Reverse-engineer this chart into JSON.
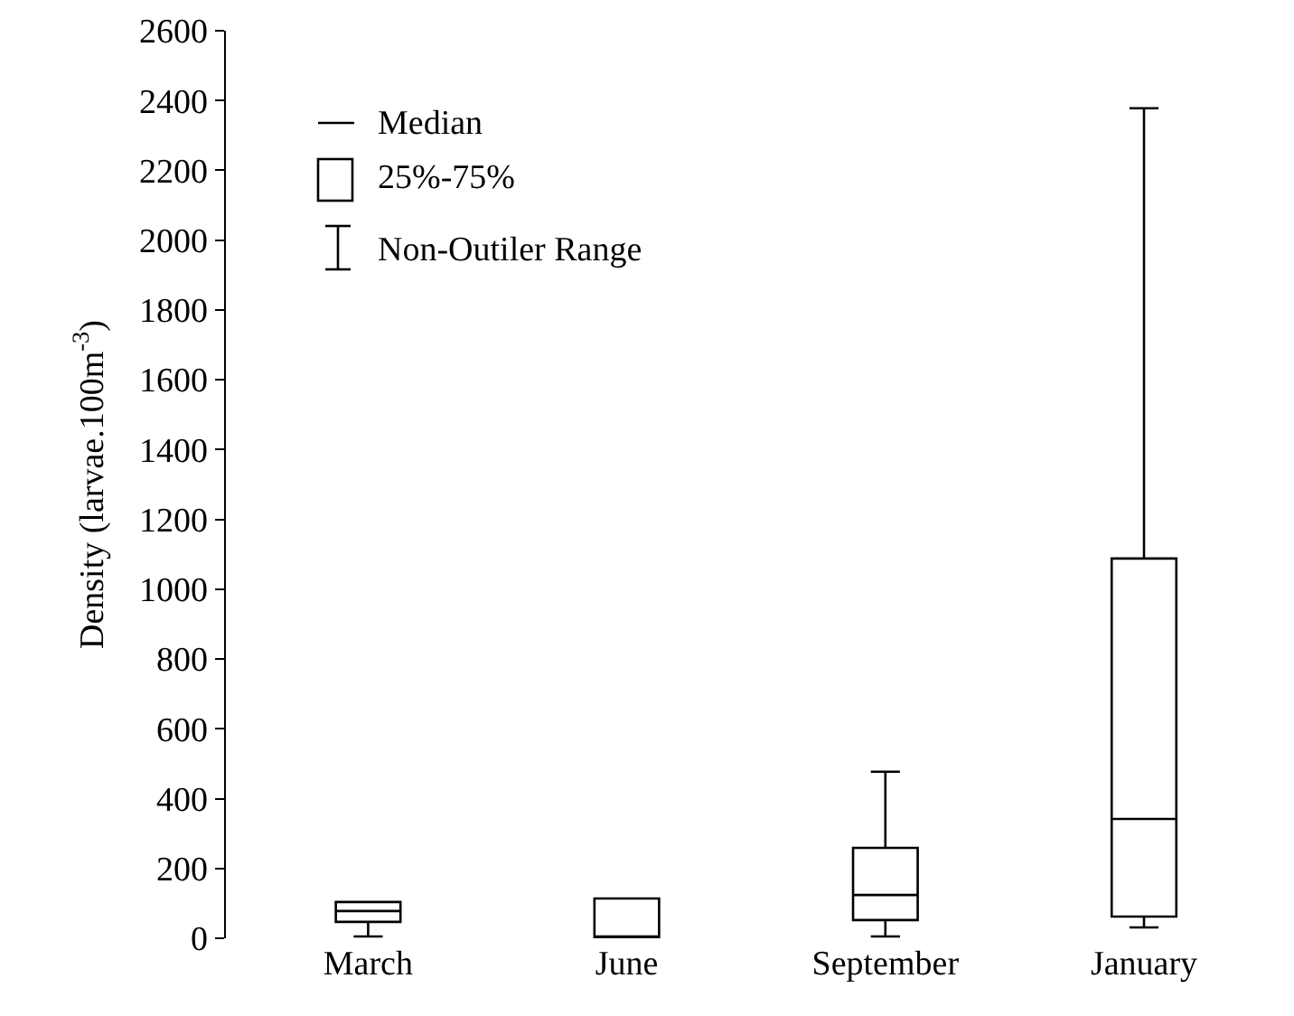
{
  "chart_data": {
    "type": "box",
    "ylabel": "Density (larvae.100m$^{-3}$)",
    "categories": [
      "March",
      "June",
      "September",
      "January"
    ],
    "boxes": [
      {
        "low": 5,
        "q1": 47,
        "median": 78,
        "q3": 104,
        "high": 104
      },
      {
        "low": 0,
        "q1": 0,
        "median": 0,
        "q3": 114,
        "high": 114
      },
      {
        "low": 5,
        "q1": 52,
        "median": 124,
        "q3": 259,
        "high": 477
      },
      {
        "low": 31,
        "q1": 62,
        "median": 342,
        "q3": 1088,
        "high": 2378
      }
    ],
    "ylim": [
      0,
      2600
    ],
    "yticks": [
      0,
      200,
      400,
      600,
      800,
      1000,
      1200,
      1400,
      1600,
      1800,
      2000,
      2200,
      2400,
      2600
    ],
    "annotations": [
      "Median",
      "25%-75%",
      "Non-Outiler Range"
    ]
  }
}
